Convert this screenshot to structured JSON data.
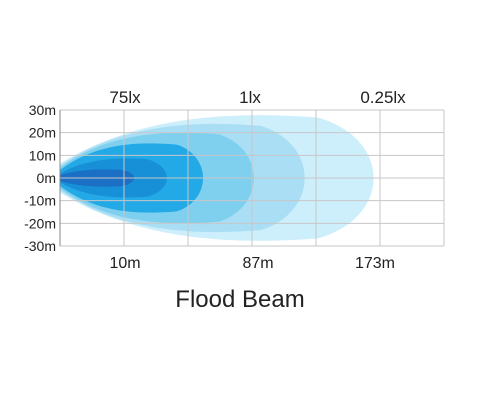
{
  "chart_data": {
    "type": "area",
    "title": "Flood Beam",
    "y_axis": {
      "unit": "m",
      "ticks": [
        "30m",
        "20m",
        "10m",
        "0m",
        "-10m",
        "-20m",
        "-30m"
      ],
      "values": [
        30,
        20,
        10,
        0,
        -10,
        -20,
        -30
      ],
      "ylim": [
        -30,
        30
      ]
    },
    "lux_labels": [
      "75lx",
      "1lx",
      "0.25lx"
    ],
    "distance_labels": [
      "10m",
      "87m",
      "173m"
    ],
    "grid": true,
    "beam_contours": [
      {
        "reach": 0.2,
        "half_width_m": 4,
        "color": "#1b6fc4"
      },
      {
        "reach": 0.29,
        "half_width_m": 9,
        "color": "#1890d8"
      },
      {
        "reach": 0.39,
        "half_width_m": 16,
        "color": "#23a9e6"
      },
      {
        "reach": 0.53,
        "half_width_m": 21,
        "color": "#7fcfef"
      },
      {
        "reach": 0.67,
        "half_width_m": 25,
        "color": "#a9def5"
      },
      {
        "reach": 0.86,
        "half_width_m": 29,
        "color": "#cdeefb"
      }
    ]
  }
}
